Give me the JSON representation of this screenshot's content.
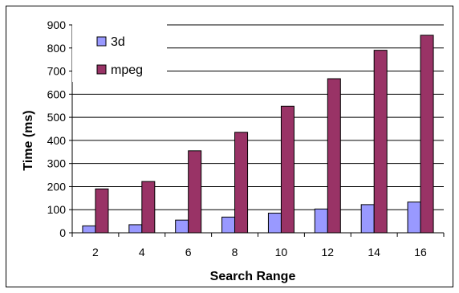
{
  "chart_data": {
    "type": "bar",
    "title": "",
    "xlabel": "Search Range",
    "ylabel": "Time (ms)",
    "categories": [
      "2",
      "4",
      "6",
      "8",
      "10",
      "12",
      "14",
      "16"
    ],
    "ylim": [
      0,
      900
    ],
    "yticks": [
      "0",
      "100",
      "200",
      "300",
      "400",
      "500",
      "600",
      "700",
      "800",
      "900"
    ],
    "grid": "horizontal",
    "legend_position": "top-left",
    "series": [
      {
        "name": "3d",
        "color": "#9999ff",
        "values": [
          30,
          35,
          55,
          68,
          85,
          103,
          122,
          133
        ]
      },
      {
        "name": "mpeg",
        "color": "#993366",
        "values": [
          190,
          222,
          355,
          435,
          548,
          667,
          790,
          855
        ]
      }
    ]
  }
}
